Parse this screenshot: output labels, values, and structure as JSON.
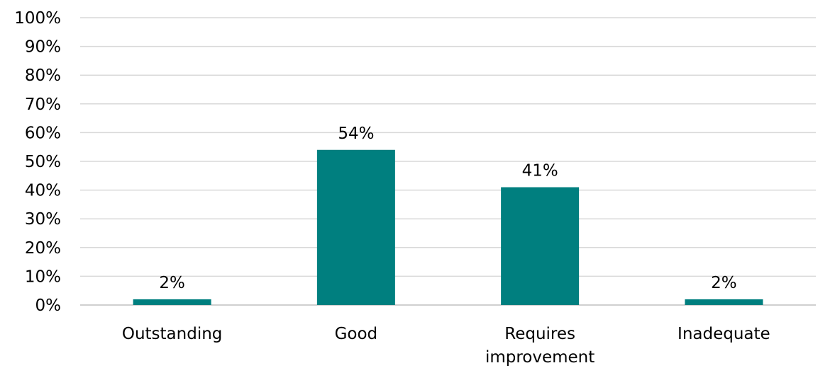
{
  "chart_data": {
    "type": "bar",
    "categories": [
      [
        "Outstanding"
      ],
      [
        "Good"
      ],
      [
        "Requires",
        "improvement"
      ],
      [
        "Inadequate"
      ]
    ],
    "values": [
      2,
      54,
      41,
      2
    ],
    "data_labels": [
      "2%",
      "54%",
      "41%",
      "2%"
    ],
    "ylim": [
      0,
      100
    ],
    "yticks": [
      0,
      10,
      20,
      30,
      40,
      50,
      60,
      70,
      80,
      90,
      100
    ],
    "ytick_labels": [
      "0%",
      "10%",
      "20%",
      "30%",
      "40%",
      "50%",
      "60%",
      "70%",
      "80%",
      "90%",
      "100%"
    ],
    "grid": true,
    "legend": "none",
    "bar_color": "#007f7f",
    "gridline_color": "#d9d9d9"
  }
}
